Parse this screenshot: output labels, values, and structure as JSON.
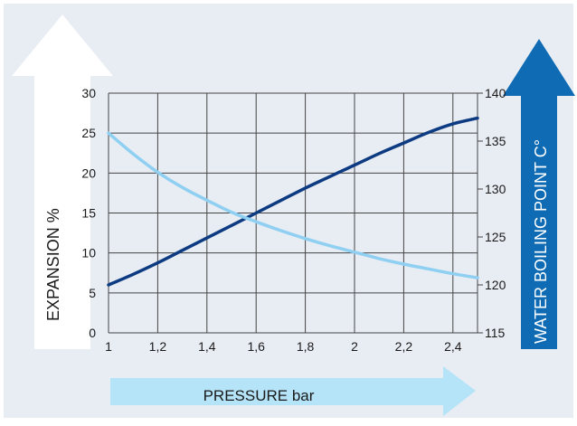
{
  "chart_data": {
    "type": "line",
    "xlabel": "PRESSURE bar",
    "ylabel_left": "EXPANSION %",
    "ylabel_right": "WATER BOILING POINT C°",
    "x_ticks": [
      "1",
      "1,2",
      "1,4",
      "1,6",
      "1,8",
      "2",
      "2,2",
      "2,4"
    ],
    "x_tick_values": [
      1.0,
      1.2,
      1.4,
      1.6,
      1.8,
      2.0,
      2.2,
      2.4
    ],
    "xlim": [
      1.0,
      2.5
    ],
    "y_left_ticks": [
      "0",
      "5",
      "10",
      "15",
      "20",
      "25",
      "30"
    ],
    "y_left_tick_values": [
      0,
      5,
      10,
      15,
      20,
      25,
      30
    ],
    "ylim_left": [
      0,
      30
    ],
    "y_right_ticks": [
      "115",
      "120",
      "125",
      "130",
      "135",
      "140"
    ],
    "y_right_tick_values": [
      115,
      120,
      125,
      130,
      135,
      140
    ],
    "ylim_right": [
      115,
      140
    ],
    "grid": true,
    "series": [
      {
        "axis": "right",
        "color": "#0d3b82",
        "x": [
          1.0,
          1.1,
          1.2,
          1.3,
          1.4,
          1.5,
          1.6,
          1.7,
          1.8,
          1.9,
          2.0,
          2.1,
          2.2,
          2.3,
          2.4,
          2.5
        ],
        "values": [
          120.0,
          121.1,
          122.3,
          123.6,
          124.9,
          126.2,
          127.5,
          128.8,
          130.1,
          131.3,
          132.5,
          133.7,
          134.8,
          135.9,
          136.8,
          137.4
        ]
      },
      {
        "axis": "left",
        "color": "#8fd0f2",
        "x": [
          1.0,
          1.1,
          1.2,
          1.3,
          1.4,
          1.5,
          1.6,
          1.7,
          1.8,
          1.9,
          2.0,
          2.1,
          2.2,
          2.3,
          2.4,
          2.5
        ],
        "values": [
          25.0,
          22.4,
          20.1,
          18.2,
          16.6,
          15.1,
          13.9,
          12.8,
          11.8,
          10.9,
          10.1,
          9.3,
          8.6,
          8.0,
          7.4,
          6.9
        ]
      }
    ]
  },
  "colors": {
    "panel": "#e8ecf3",
    "left_arrow": "#ffffff",
    "right_arrow": "#0e6bb4",
    "bottom_arrow": "#b5e3f8",
    "grid": "#444444",
    "text": "#1a1a1a"
  }
}
